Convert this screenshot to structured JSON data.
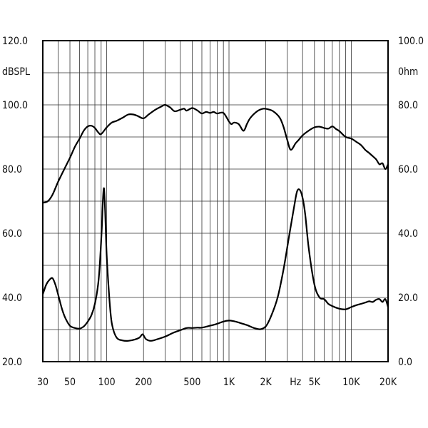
{
  "chart_data": {
    "type": "line",
    "xscale": "log",
    "xlim": [
      30,
      20000
    ],
    "ylim_left": [
      20,
      120
    ],
    "ylim_right": [
      0,
      100
    ],
    "grid": true,
    "left_unit_label": "dBSPL",
    "right_unit_label": "0hm",
    "left_ticks": [
      "120.0",
      "100.0",
      "80.0",
      "60.0",
      "40.0",
      "20.0"
    ],
    "left_tick_values": [
      120,
      100,
      80,
      60,
      40,
      20
    ],
    "right_ticks": [
      "100.0",
      "80.0",
      "60.0",
      "40.0",
      "20.0",
      "0.0"
    ],
    "right_tick_values": [
      100,
      80,
      60,
      40,
      20,
      0
    ],
    "x_ticks": [
      {
        "value": 30,
        "label": "30"
      },
      {
        "value": 50,
        "label": "50"
      },
      {
        "value": 100,
        "label": "100"
      },
      {
        "value": 200,
        "label": "200"
      },
      {
        "value": 500,
        "label": "500"
      },
      {
        "value": 1000,
        "label": "1K"
      },
      {
        "value": 2000,
        "label": "2K"
      },
      {
        "value": 3500,
        "label": "Hz"
      },
      {
        "value": 5000,
        "label": "5K"
      },
      {
        "value": 10000,
        "label": "10K"
      },
      {
        "value": 20000,
        "label": "20K"
      }
    ],
    "series": [
      {
        "axis": "left",
        "x": [
          30,
          33,
          36,
          40,
          45,
          50,
          55,
          60,
          65,
          70,
          75,
          80,
          85,
          90,
          100,
          110,
          120,
          135,
          150,
          165,
          180,
          200,
          220,
          250,
          280,
          300,
          330,
          360,
          400,
          430,
          450,
          500,
          550,
          600,
          650,
          700,
          750,
          800,
          900,
          1000,
          1050,
          1100,
          1200,
          1300,
          1350,
          1400,
          1500,
          1700,
          1900,
          2100,
          2300,
          2600,
          2800,
          3000,
          3200,
          3500,
          3700,
          4000,
          4500,
          5000,
          5500,
          6000,
          6500,
          7000,
          7500,
          8000,
          9000,
          10000,
          11000,
          12000,
          13000,
          14000,
          15000,
          16000,
          17000,
          18000,
          19000,
          20000
        ],
        "values": [
          69.5,
          70,
          72,
          76,
          80,
          83.5,
          87,
          89.5,
          92,
          93.3,
          93.5,
          92.8,
          91.5,
          90.9,
          93,
          94.5,
          95,
          96,
          97,
          97,
          96.5,
          95.8,
          97,
          98.5,
          99.5,
          100,
          99.2,
          98,
          98.5,
          98.8,
          98.2,
          99,
          98.3,
          97.3,
          97.8,
          97.5,
          97.8,
          97.3,
          97.5,
          94.8,
          94,
          94.5,
          94,
          92,
          92.5,
          94,
          96,
          98,
          98.8,
          98.6,
          98,
          96,
          93,
          89,
          86,
          88,
          89,
          90.5,
          92,
          93,
          93.2,
          92.8,
          92.6,
          93.3,
          92.5,
          91.8,
          90,
          89.5,
          88.5,
          87.5,
          86,
          85,
          84,
          83,
          81.5,
          81.8,
          80,
          81.5
        ]
      },
      {
        "axis": "right",
        "x": [
          30,
          32,
          34,
          36,
          38,
          40,
          43,
          46,
          50,
          55,
          60,
          65,
          70,
          75,
          80,
          85,
          88,
          91,
          93,
          95,
          97,
          100,
          105,
          110,
          120,
          135,
          150,
          170,
          185,
          195,
          200,
          210,
          230,
          260,
          300,
          350,
          400,
          450,
          500,
          550,
          600,
          700,
          800,
          900,
          1000,
          1100,
          1200,
          1400,
          1600,
          1800,
          2000,
          2200,
          2500,
          2800,
          3100,
          3400,
          3600,
          3800,
          4000,
          4200,
          4500,
          5000,
          5500,
          6000,
          6500,
          7000,
          8000,
          9000,
          10000,
          11000,
          12000,
          13000,
          14000,
          15000,
          16000,
          17000,
          18000,
          19000,
          20000
        ],
        "values": [
          21,
          24,
          25.5,
          26,
          24,
          21,
          16.5,
          13.5,
          11.2,
          10.5,
          10.3,
          11,
          12.5,
          14.5,
          18,
          24,
          31,
          41,
          50,
          54,
          47,
          33,
          20,
          12,
          7.6,
          6.6,
          6.5,
          6.9,
          7.5,
          8.5,
          8.2,
          7,
          6.5,
          7,
          7.8,
          9,
          9.8,
          10.5,
          10.5,
          10.6,
          10.6,
          11.2,
          11.8,
          12.5,
          12.8,
          12.6,
          12.2,
          11.4,
          10.5,
          10.1,
          11,
          14,
          20,
          29,
          39,
          48,
          53,
          53.5,
          51,
          46,
          35,
          24,
          20,
          19.5,
          18,
          17.3,
          16.5,
          16.3,
          17,
          17.6,
          18,
          18.4,
          18.8,
          18.6,
          19.3,
          19.5,
          18.6,
          19.5,
          17
        ]
      }
    ]
  }
}
